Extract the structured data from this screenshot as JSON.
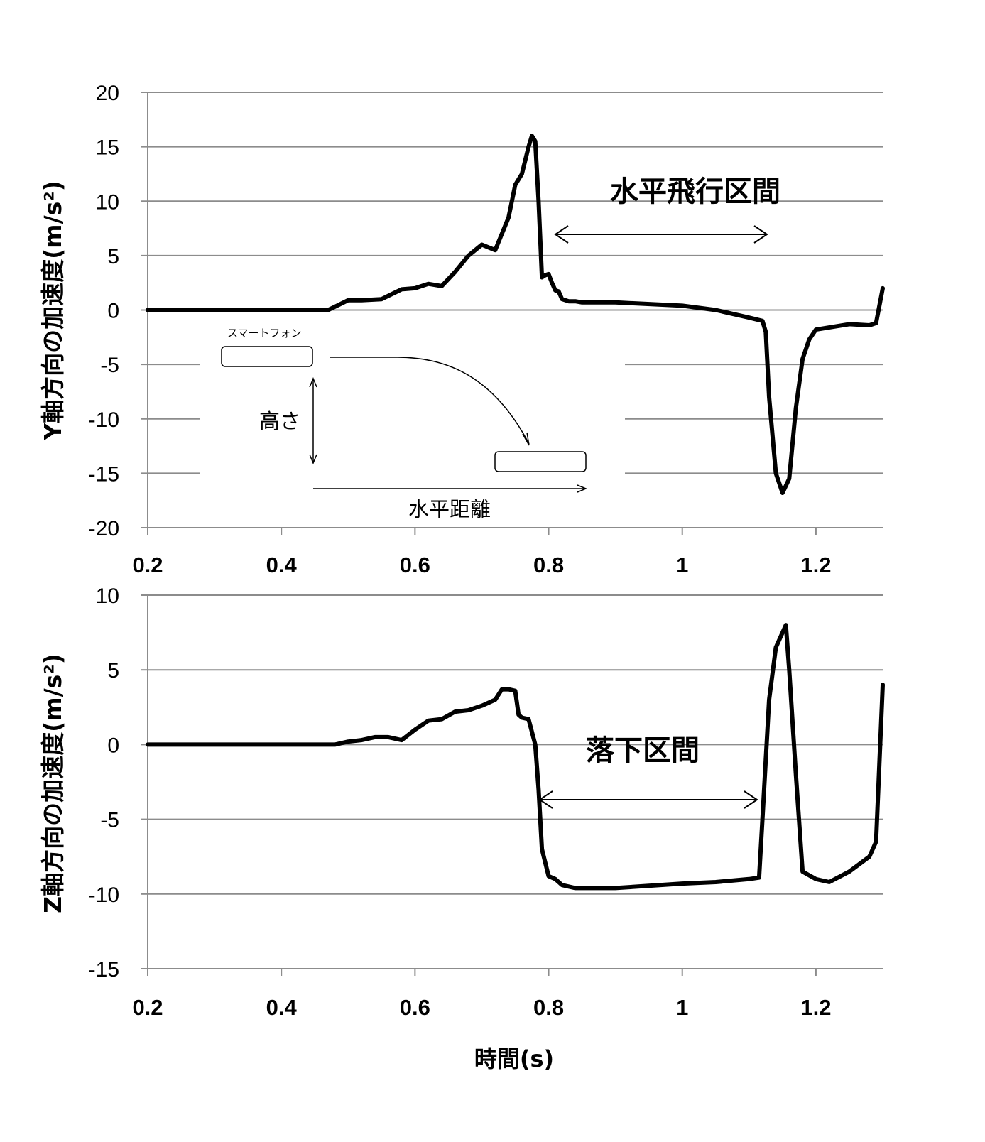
{
  "chart_data": [
    {
      "type": "line",
      "ylabel": "Y軸方向の加速度(m/s²)",
      "xlim": [
        0.2,
        1.3
      ],
      "ylim": [
        -20,
        20
      ],
      "yticks": [
        20,
        15,
        10,
        5,
        0,
        -5,
        -10,
        -15,
        -20
      ],
      "ytick_labels": [
        "20",
        "15",
        "10",
        "5",
        "0",
        "-5",
        "-10",
        "-15",
        "-20"
      ],
      "xticks": [
        0.2,
        0.4,
        0.6,
        0.8,
        1.0,
        1.2
      ],
      "xtick_labels": [
        "0.2",
        "0.4",
        "0.6",
        "0.8",
        "1",
        "1.2"
      ],
      "grid": "horizontal",
      "annotation": "水平飛行区間",
      "series": [
        {
          "x": [
            0.2,
            0.47,
            0.48,
            0.49,
            0.5,
            0.52,
            0.55,
            0.57,
            0.58,
            0.6,
            0.62,
            0.64,
            0.66,
            0.68,
            0.7,
            0.72,
            0.73,
            0.74,
            0.75,
            0.76,
            0.77,
            0.775,
            0.78,
            0.785,
            0.79,
            0.795,
            0.8,
            0.805,
            0.81,
            0.815,
            0.82,
            0.83,
            0.84,
            0.85,
            0.9,
            1.0,
            1.05,
            1.1,
            1.12,
            1.125,
            1.13,
            1.14,
            1.15,
            1.16,
            1.17,
            1.18,
            1.19,
            1.2,
            1.25,
            1.28,
            1.29,
            1.3
          ],
          "y": [
            0,
            0,
            0.3,
            0.6,
            0.9,
            0.9,
            1.0,
            1.6,
            1.9,
            2.0,
            2.4,
            2.2,
            3.5,
            5.0,
            6.0,
            5.5,
            7.0,
            8.5,
            11.5,
            12.5,
            15.0,
            16.0,
            15.5,
            10.0,
            3.0,
            3.2,
            3.3,
            2.5,
            1.8,
            1.7,
            1.0,
            0.8,
            0.8,
            0.7,
            0.7,
            0.4,
            0.0,
            -0.7,
            -1.0,
            -2.0,
            -8.0,
            -15.0,
            -16.8,
            -15.5,
            -9.0,
            -4.5,
            -2.7,
            -1.8,
            -1.3,
            -1.4,
            -1.2,
            2.0
          ]
        }
      ]
    },
    {
      "type": "line",
      "ylabel": "Z軸方向の加速度(m/s²)",
      "xlabel": "時間(s)",
      "xlim": [
        0.2,
        1.3
      ],
      "ylim": [
        -15,
        10
      ],
      "yticks": [
        10,
        5,
        0,
        -5,
        -10,
        -15
      ],
      "ytick_labels": [
        "10",
        "5",
        "0",
        "-5",
        "-10",
        "-15"
      ],
      "xticks": [
        0.2,
        0.4,
        0.6,
        0.8,
        1.0,
        1.2
      ],
      "xtick_labels": [
        "0.2",
        "0.4",
        "0.6",
        "0.8",
        "1",
        "1.2"
      ],
      "grid": "horizontal",
      "annotation": "落下区間",
      "series": [
        {
          "x": [
            0.2,
            0.48,
            0.5,
            0.52,
            0.54,
            0.56,
            0.58,
            0.6,
            0.62,
            0.64,
            0.66,
            0.68,
            0.7,
            0.72,
            0.73,
            0.74,
            0.75,
            0.755,
            0.76,
            0.77,
            0.78,
            0.785,
            0.79,
            0.8,
            0.81,
            0.82,
            0.84,
            0.9,
            1.0,
            1.05,
            1.1,
            1.115,
            1.12,
            1.13,
            1.14,
            1.15,
            1.155,
            1.16,
            1.17,
            1.18,
            1.2,
            1.22,
            1.25,
            1.28,
            1.29,
            1.3
          ],
          "y": [
            0,
            0,
            0.2,
            0.3,
            0.5,
            0.5,
            0.3,
            1.0,
            1.6,
            1.7,
            2.2,
            2.3,
            2.6,
            3.0,
            3.7,
            3.7,
            3.6,
            2.0,
            1.8,
            1.7,
            0.0,
            -3.0,
            -7.0,
            -8.8,
            -9.0,
            -9.4,
            -9.6,
            -9.6,
            -9.3,
            -9.2,
            -9.0,
            -8.9,
            -5.0,
            3.0,
            6.5,
            7.5,
            8.0,
            5.0,
            -2.0,
            -8.5,
            -9.0,
            -9.2,
            -8.5,
            -7.5,
            -6.5,
            4.0
          ]
        }
      ]
    }
  ],
  "annotations": {
    "phone_label": "スマートフォン",
    "height_label": "高さ",
    "distance_label": "水平距離",
    "flight_label": "水平飛行区間",
    "fall_label": "落下区間"
  }
}
